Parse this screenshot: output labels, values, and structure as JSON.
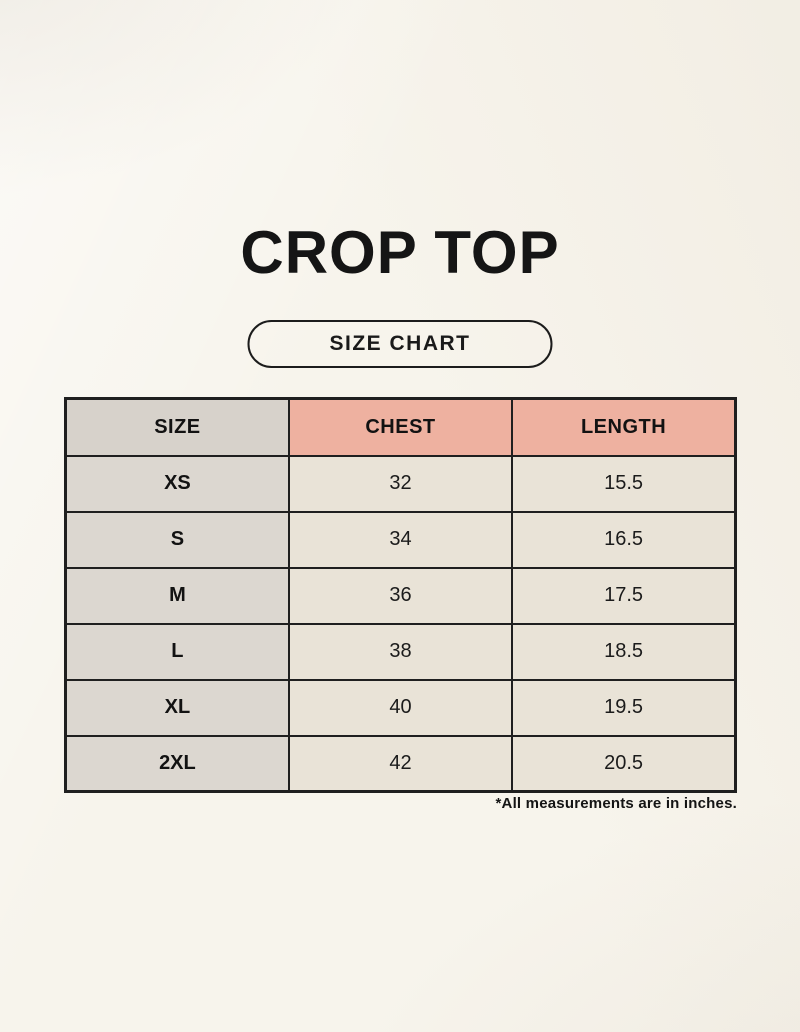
{
  "page": {
    "title": "CROP TOP",
    "badge_label": "SIZE CHART",
    "footnote": "*All measurements are in inches."
  },
  "table": {
    "headers": [
      "SIZE",
      "CHEST",
      "LENGTH"
    ],
    "rows": [
      {
        "size": "XS",
        "chest": "32",
        "length": "15.5"
      },
      {
        "size": "S",
        "chest": "34",
        "length": "16.5"
      },
      {
        "size": "M",
        "chest": "36",
        "length": "17.5"
      },
      {
        "size": "L",
        "chest": "38",
        "length": "18.5"
      },
      {
        "size": "XL",
        "chest": "40",
        "length": "19.5"
      },
      {
        "size": "2XL",
        "chest": "42",
        "length": "20.5"
      }
    ],
    "units": "inches"
  },
  "colors": {
    "background": "#f7f4ec",
    "header_size_bg": "#d7d2cb",
    "header_measure_bg": "#eeb1a0",
    "size_column_bg": "#dcd7d0",
    "value_cell_bg": "#e9e3d7",
    "border": "#1f1f1f",
    "text": "#161616"
  }
}
